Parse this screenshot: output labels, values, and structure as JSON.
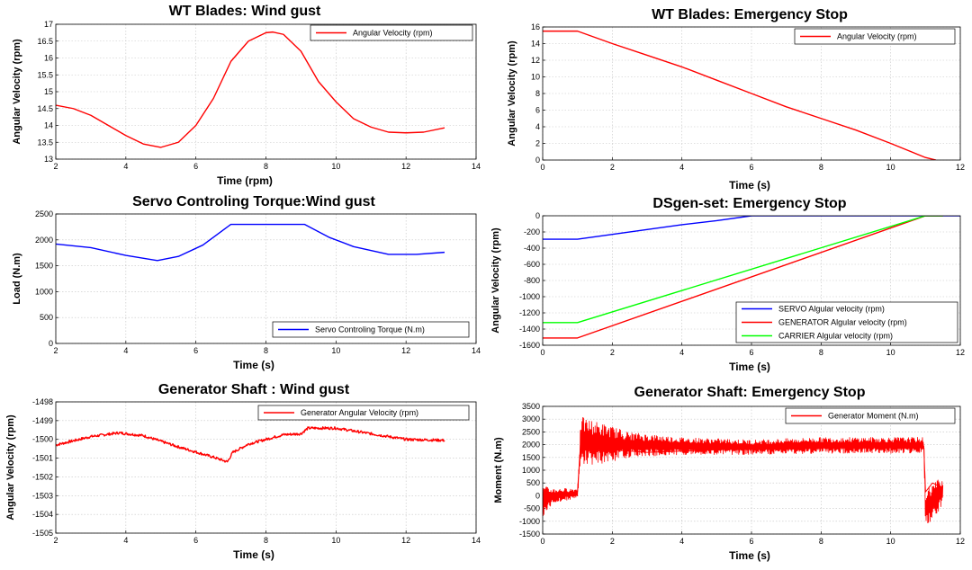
{
  "chart_data": [
    {
      "id": "wt-wind",
      "type": "line",
      "title": "WT Blades: Wind gust",
      "xlabel": "Time (rpm)",
      "ylabel": "Angular Velocity (rpm)",
      "xlim": [
        2,
        14
      ],
      "ylim": [
        13,
        17
      ],
      "xticks": [
        2,
        4,
        6,
        8,
        10,
        12,
        14
      ],
      "yticks": [
        13,
        13.5,
        14,
        14.5,
        15,
        15.5,
        16,
        16.5,
        17
      ],
      "grid": true,
      "legend": "top-right",
      "series": [
        {
          "name": "Angular Velocity (rpm)",
          "color": "#ff0000",
          "noise": 0,
          "x": [
            2,
            2.5,
            3,
            3.5,
            4,
            4.5,
            5,
            5.5,
            6,
            6.5,
            7,
            7.5,
            8,
            8.2,
            8.5,
            9,
            9.5,
            10,
            10.5,
            11,
            11.5,
            12,
            12.5,
            13.1
          ],
          "y": [
            14.6,
            14.5,
            14.3,
            14.0,
            13.7,
            13.45,
            13.35,
            13.5,
            14.0,
            14.8,
            15.9,
            16.5,
            16.75,
            16.77,
            16.7,
            16.2,
            15.3,
            14.7,
            14.2,
            13.95,
            13.8,
            13.78,
            13.8,
            13.93
          ]
        }
      ]
    },
    {
      "id": "wt-stop",
      "type": "line",
      "title": "WT Blades: Emergency Stop",
      "xlabel": "Time (s)",
      "ylabel": "Angular Velocity (rpm)",
      "xlim": [
        0,
        12
      ],
      "ylim": [
        0,
        16
      ],
      "xticks": [
        0,
        2,
        4,
        6,
        8,
        10,
        12
      ],
      "yticks": [
        0,
        2,
        4,
        6,
        8,
        10,
        12,
        14,
        16
      ],
      "grid": true,
      "legend": "top-right",
      "series": [
        {
          "name": "Angular Velocity (rpm)",
          "color": "#ff0000",
          "noise": 0,
          "x": [
            0,
            1,
            2,
            3,
            4,
            5,
            6,
            7,
            8,
            9,
            10,
            11,
            11.3
          ],
          "y": [
            15.5,
            15.5,
            14.0,
            12.6,
            11.2,
            9.6,
            8.0,
            6.4,
            5.0,
            3.6,
            2.0,
            0.3,
            0
          ]
        }
      ]
    },
    {
      "id": "servo-wind",
      "type": "line",
      "title": "Servo Controling Torque:Wind gust",
      "xlabel": "Time (s)",
      "ylabel": "Load (N.m)",
      "xlim": [
        2,
        14
      ],
      "ylim": [
        0,
        2500
      ],
      "xticks": [
        2,
        4,
        6,
        8,
        10,
        12,
        14
      ],
      "yticks": [
        0,
        500,
        1000,
        1500,
        2000,
        2500
      ],
      "grid": true,
      "legend": "bottom-right",
      "series": [
        {
          "name": "Servo Controling Torque (N.m)",
          "color": "#0000ff",
          "noise": 0,
          "x": [
            2,
            3,
            4,
            4.9,
            5.5,
            6.2,
            7.0,
            9.1,
            9.8,
            10.5,
            11.5,
            12.3,
            13.1
          ],
          "y": [
            1920,
            1850,
            1700,
            1600,
            1680,
            1900,
            2300,
            2300,
            2050,
            1870,
            1720,
            1720,
            1760
          ]
        }
      ]
    },
    {
      "id": "dsgen-stop",
      "type": "line",
      "title": "DSgen-set: Emergency Stop",
      "xlabel": "Time (s)",
      "ylabel": "Angular Velocity (rpm)",
      "xlim": [
        0,
        12
      ],
      "ylim": [
        -1600,
        0
      ],
      "xticks": [
        0,
        2,
        4,
        6,
        8,
        10,
        12
      ],
      "yticks": [
        -1600,
        -1400,
        -1200,
        -1000,
        -800,
        -600,
        -400,
        -200,
        0
      ],
      "grid": true,
      "legend": "bottom-right",
      "series": [
        {
          "name": "SERVO Algular velocity (rpm)",
          "color": "#0000ff",
          "noise": 0,
          "x": [
            0,
            1,
            2,
            3,
            4,
            5,
            6,
            12
          ],
          "y": [
            -290,
            -290,
            -230,
            -170,
            -110,
            -60,
            0,
            0
          ]
        },
        {
          "name": "GENERATOR Algular velocity (rpm)",
          "color": "#ff0000",
          "noise": 0,
          "x": [
            0,
            1,
            11,
            11.5
          ],
          "y": [
            -1510,
            -1510,
            0,
            0
          ]
        },
        {
          "name": "CARRIER Algular velocity (rpm)",
          "color": "#00ff00",
          "noise": 0,
          "x": [
            0,
            1,
            11,
            11.5
          ],
          "y": [
            -1320,
            -1320,
            0,
            0
          ]
        }
      ]
    },
    {
      "id": "gen-wind",
      "type": "line",
      "title": "Generator Shaft : Wind gust",
      "xlabel": "Time (s)",
      "ylabel": "Angular Velocity (rpm)",
      "xlim": [
        2,
        14
      ],
      "ylim": [
        -1505,
        -1498
      ],
      "xticks": [
        2,
        4,
        6,
        8,
        10,
        12,
        14
      ],
      "yticks": [
        -1505,
        -1504,
        -1503,
        -1502,
        -1501,
        -1500,
        -1499,
        -1498
      ],
      "grid": true,
      "legend": "top-right",
      "series": [
        {
          "name": "Generator Angular Velocity (rpm)",
          "color": "#ff0000",
          "noise": 0.07,
          "x": [
            2,
            3,
            3.8,
            4.5,
            5.5,
            6.5,
            6.9,
            7.05,
            7.5,
            8.5,
            9.0,
            9.2,
            10.0,
            11.0,
            12.0,
            13.1
          ],
          "y": [
            -1500.3,
            -1499.85,
            -1499.65,
            -1499.8,
            -1500.4,
            -1500.95,
            -1501.2,
            -1500.7,
            -1500.25,
            -1499.75,
            -1499.7,
            -1499.4,
            -1499.4,
            -1499.7,
            -1500.0,
            -1500.05
          ]
        }
      ]
    },
    {
      "id": "gen-stop",
      "type": "line",
      "title": "Generator Shaft: Emergency Stop",
      "xlabel": "Time (s)",
      "ylabel": "Moment (N.m)",
      "xlim": [
        0,
        12
      ],
      "ylim": [
        -1500,
        3500
      ],
      "xticks": [
        0,
        2,
        4,
        6,
        8,
        10,
        12
      ],
      "yticks": [
        -1500,
        -1000,
        -500,
        0,
        500,
        1000,
        1500,
        2000,
        2500,
        3000,
        3500
      ],
      "grid": true,
      "legend": "top-right",
      "series": [
        {
          "name": "Generator Moment (N.m)",
          "color": "#ff0000",
          "noise": 0,
          "x": [
            0,
            0.3,
            0.6,
            1.0,
            1.1,
            1.5,
            2.0,
            3.0,
            5.0,
            8.0,
            10.0,
            10.95,
            11.0,
            11.2,
            11.5
          ],
          "y": [
            200,
            100,
            50,
            150,
            2300,
            2200,
            1800,
            1700,
            1800,
            1900,
            1950,
            1950,
            150,
            500,
            300
          ],
          "band": {
            "x": [
              0,
              0.3,
              1.0,
              1.1,
              1.6,
              2.5,
              4.0,
              6.0,
              8.0,
              10.95,
              11.0,
              11.5
            ],
            "hi": [
              400,
              300,
              300,
              3100,
              2900,
              2500,
              2300,
              2200,
              2300,
              2300,
              300,
              800
            ],
            "lo": [
              -900,
              -300,
              -100,
              1200,
              1200,
              1500,
              1600,
              1600,
              1650,
              1650,
              -1300,
              -400
            ]
          }
        }
      ]
    }
  ]
}
